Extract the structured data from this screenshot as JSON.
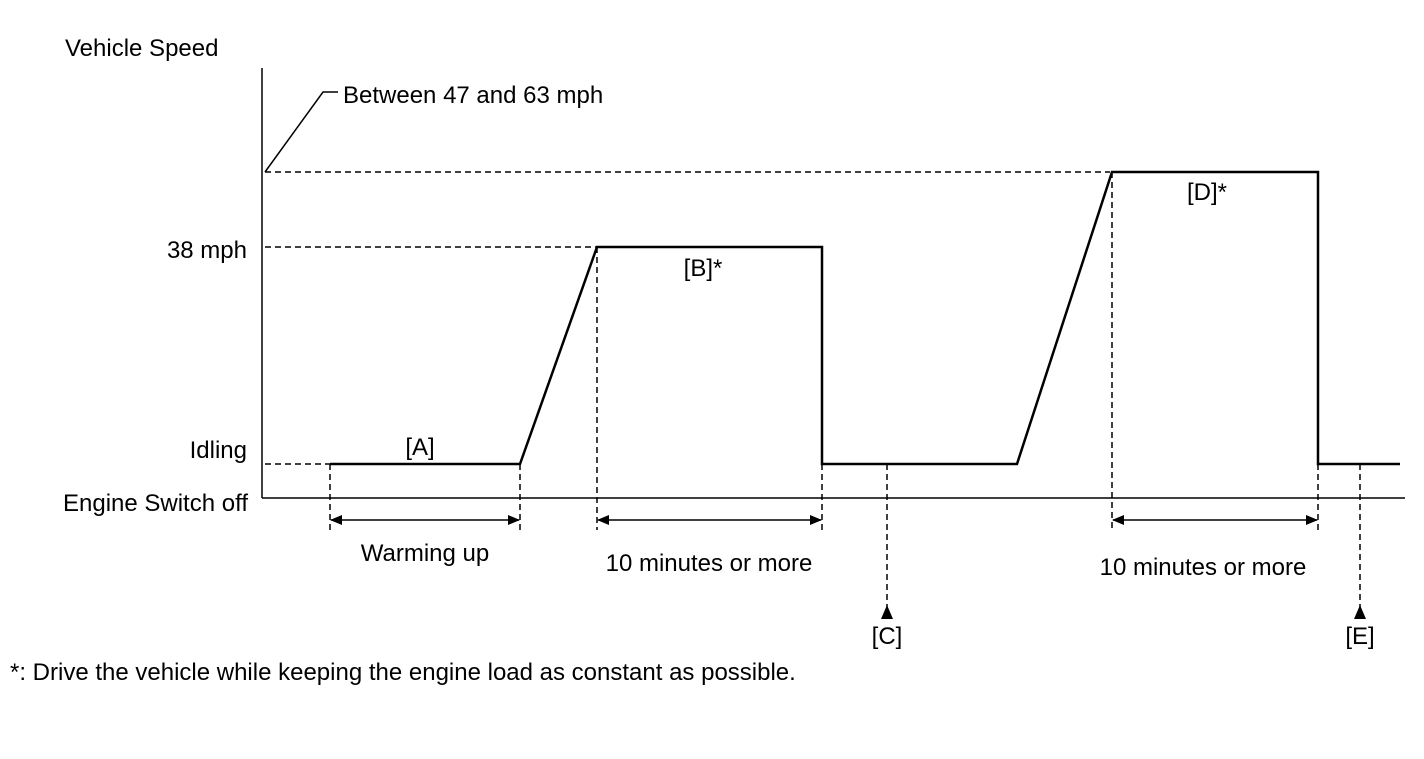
{
  "diagram": {
    "y_axis_title": "Vehicle Speed",
    "levels": {
      "high": "Between 47 and 63 mph",
      "mid": "38 mph",
      "idle": "Idling",
      "off": "Engine Switch off"
    },
    "phases": {
      "a": "[A]",
      "b": "[B]*",
      "c": "[C]",
      "d": "[D]*",
      "e": "[E]"
    },
    "durations": {
      "warmup": "Warming up",
      "b": "10 minutes or more",
      "d": "10 minutes or more"
    },
    "footnote": "*: Drive the vehicle while keeping the engine load as constant as possible.",
    "colors": {
      "line": "#000000",
      "background": "#ffffff"
    }
  }
}
